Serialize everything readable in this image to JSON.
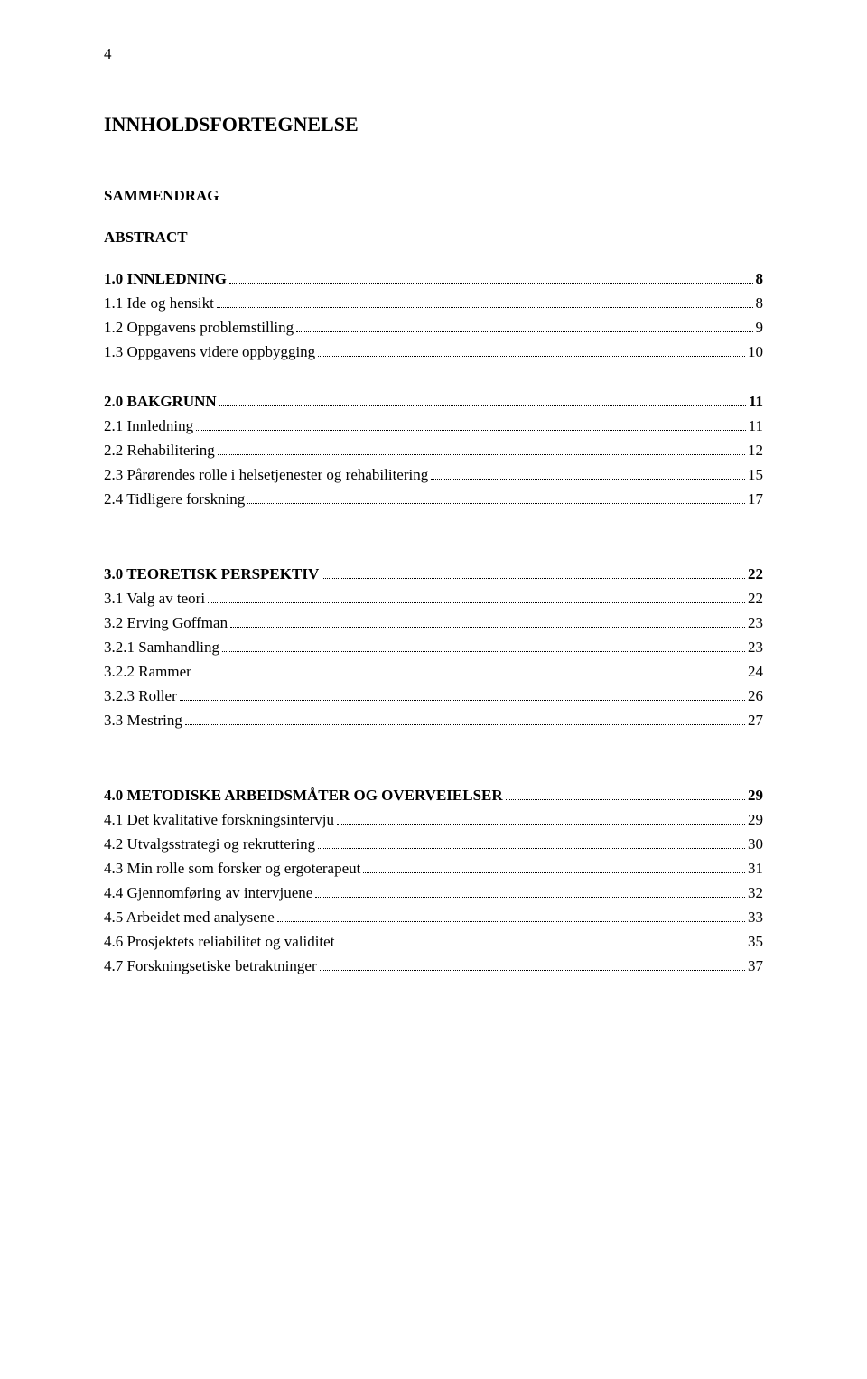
{
  "page_number": "4",
  "title": "INNHOLDSFORTEGNELSE",
  "subheadings": {
    "sammendrag": "SAMMENDRAG",
    "abstract": "ABSTRACT"
  },
  "sections": [
    {
      "heading": {
        "label": "1.0 INNLEDNING",
        "page": "8"
      },
      "items": [
        {
          "label": "1.1 Ide og hensikt",
          "page": "8"
        },
        {
          "label": "1.2 Oppgavens problemstilling",
          "page": "9"
        },
        {
          "label": "1.3 Oppgavens videre oppbygging",
          "page": "10"
        }
      ]
    },
    {
      "heading": {
        "label": "2.0 BAKGRUNN",
        "page": "11"
      },
      "items": [
        {
          "label": "2.1 Innledning",
          "page": "11"
        },
        {
          "label": "2.2 Rehabilitering",
          "page": "12"
        },
        {
          "label": "2.3 Pårørendes rolle i helsetjenester og rehabilitering",
          "page": "15"
        },
        {
          "label": "2.4 Tidligere forskning",
          "page": "17"
        }
      ]
    },
    {
      "heading": {
        "label": "3.0 TEORETISK PERSPEKTIV",
        "page": "22"
      },
      "items": [
        {
          "label": "3.1 Valg av teori",
          "page": "22"
        },
        {
          "label": "3.2 Erving Goffman",
          "page": "23"
        },
        {
          "label": "3.2.1 Samhandling",
          "page": "23"
        },
        {
          "label": "3.2.2 Rammer",
          "page": "24"
        },
        {
          "label": "3.2.3 Roller",
          "page": "26"
        },
        {
          "label": "3.3 Mestring",
          "page": "27"
        }
      ]
    },
    {
      "heading": {
        "label": "4.0 METODISKE ARBEIDSMÅTER OG OVERVEIELSER",
        "page": "29"
      },
      "items": [
        {
          "label": "4.1 Det kvalitative forskningsintervju",
          "page": "29"
        },
        {
          "label": "4.2 Utvalgsstrategi og rekruttering",
          "page": "30"
        },
        {
          "label": "4.3 Min rolle som forsker og ergoterapeut",
          "page": "31"
        },
        {
          "label": "4.4 Gjennomføring av intervjuene",
          "page": "32"
        },
        {
          "label": "4.5 Arbeidet med analysene",
          "page": "33"
        },
        {
          "label": "4.6 Prosjektets reliabilitet og validitet",
          "page": "35"
        },
        {
          "label": "4.7 Forskningsetiske betraktninger",
          "page": "37"
        }
      ]
    }
  ]
}
